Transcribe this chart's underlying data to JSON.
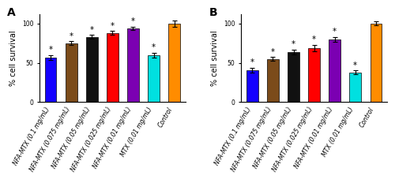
{
  "panel_A": {
    "label": "A",
    "categories": [
      "NFA-MTX (0.1 mg/mL)",
      "NFA-MTX (0.075 mg/mL)",
      "NFA-MTX (0.05 mg/mL)",
      "NFA-MTX (0.025 mg/mL)",
      "NFA-MTX (0.01 mg/mL)",
      "MTX (0.01 mg/mL)",
      "Control"
    ],
    "values": [
      57,
      75,
      83,
      88,
      94,
      60,
      100
    ],
    "errors": [
      3,
      2.5,
      2.5,
      2.5,
      2,
      3,
      4
    ],
    "colors": [
      "#1400ff",
      "#7b4b1a",
      "#111111",
      "#ff0000",
      "#7b00b2",
      "#00e0e0",
      "#ff8c00"
    ],
    "has_star": [
      true,
      true,
      true,
      true,
      true,
      true,
      false
    ],
    "ylim": [
      0,
      112
    ],
    "ylabel": "% cell survival"
  },
  "panel_B": {
    "label": "B",
    "categories": [
      "NFA-MTX (0.1 mg/mL)",
      "NFA-MTX (0.075 mg/mL)",
      "NFA-MTX (0.05 mg/mL)",
      "NFA-MTX (0.025 mg/mL)",
      "NFA-MTX (0.01 mg/mL)",
      "MTX (0.01 mg/mL)",
      "Control"
    ],
    "values": [
      41,
      55,
      64,
      69,
      80,
      38,
      100
    ],
    "errors": [
      3,
      2.5,
      3,
      4,
      3,
      2.5,
      2.5
    ],
    "colors": [
      "#1400ff",
      "#7b4b1a",
      "#111111",
      "#ff0000",
      "#7b00b2",
      "#00e0e0",
      "#ff8c00"
    ],
    "has_star": [
      true,
      true,
      true,
      true,
      true,
      true,
      false
    ],
    "ylim": [
      0,
      112
    ],
    "ylabel": "% cell survival"
  },
  "tick_fontsize": 5.5,
  "label_fontsize": 7.0,
  "panel_label_fontsize": 10,
  "star_fontsize": 7.5,
  "bar_width": 0.55,
  "figure_bg": "#ffffff"
}
